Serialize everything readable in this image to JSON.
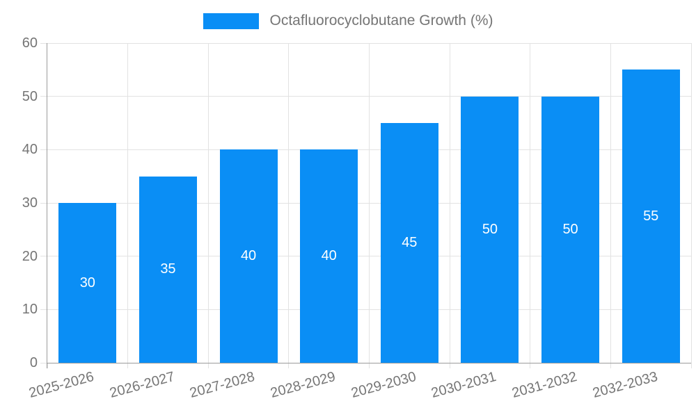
{
  "legend": {
    "label": "Octafluorocyclobutane Growth (%)"
  },
  "chart_data": {
    "type": "bar",
    "title": "",
    "categories": [
      "2025-2026",
      "2026-2027",
      "2027-2028",
      "2028-2029",
      "2029-2030",
      "2030-2031",
      "2031-2032",
      "2032-2033"
    ],
    "values": [
      30,
      35,
      40,
      40,
      45,
      50,
      50,
      55
    ],
    "series_name": "Octafluorocyclobutane Growth (%)",
    "xlabel": "",
    "ylabel": "",
    "ylim": [
      0,
      60
    ],
    "yticks": [
      0,
      10,
      20,
      30,
      40,
      50,
      60
    ],
    "grid": true,
    "legend_position": "top-center",
    "value_labels": "inside-center-white"
  },
  "colors": {
    "bar": "#0a8ef5",
    "grid": "#e2e2e2",
    "axis": "#9b9b9b",
    "text": "#757575",
    "value_label": "#ffffff",
    "background": "#ffffff"
  }
}
